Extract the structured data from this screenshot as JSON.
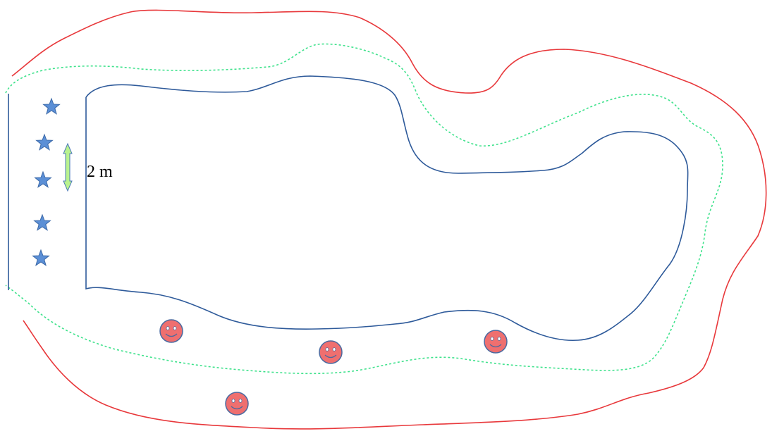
{
  "measurement": {
    "label": "2 m"
  },
  "colors": {
    "outer_boundary": "#e8383b",
    "middle_boundary": "#3fe28c",
    "inner_boundary": "#2e5a9a",
    "left_lines": "#2e5a9a",
    "star_fill": "#5b8fd6",
    "star_stroke": "#3d6aa8",
    "smiley_fill": "#ef6f6f",
    "smiley_stroke": "#4a6aa0",
    "arrow_fill": "#b9f28e",
    "arrow_stroke": "#4a78b8",
    "label_text": "#000000"
  },
  "icons": {
    "marker_a": "star-icon",
    "marker_b": "smiley-icon",
    "measure": "double-arrow-icon"
  }
}
